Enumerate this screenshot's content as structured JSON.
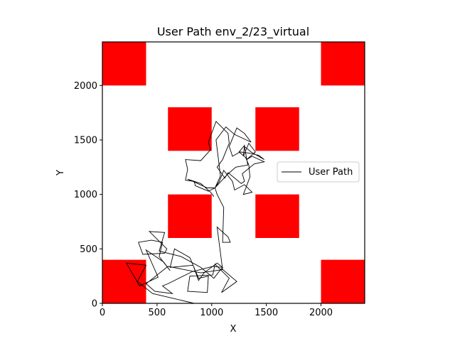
{
  "chart_data": {
    "type": "line",
    "title": "User Path env_2/23_virtual",
    "xlabel": "X",
    "ylabel": "Y",
    "xlim": [
      0,
      2400
    ],
    "ylim": [
      0,
      2400
    ],
    "xticks": [
      0,
      500,
      1000,
      1500,
      2000
    ],
    "yticks": [
      0,
      500,
      1000,
      1500,
      2000
    ],
    "grid": false,
    "legend": {
      "position": "center-right",
      "entries": [
        "User Path"
      ]
    },
    "obstacle_color": "#ff0000",
    "path_color": "#000000",
    "obstacles": [
      {
        "x": 0,
        "y": 2000,
        "w": 400,
        "h": 400
      },
      {
        "x": 2000,
        "y": 2000,
        "w": 400,
        "h": 400
      },
      {
        "x": 600,
        "y": 1400,
        "w": 400,
        "h": 400
      },
      {
        "x": 1400,
        "y": 1400,
        "w": 400,
        "h": 400
      },
      {
        "x": 600,
        "y": 600,
        "w": 400,
        "h": 400
      },
      {
        "x": 1400,
        "y": 600,
        "w": 400,
        "h": 400
      },
      {
        "x": 0,
        "y": 0,
        "w": 400,
        "h": 400
      },
      {
        "x": 2000,
        "y": 0,
        "w": 400,
        "h": 400
      }
    ],
    "series": [
      {
        "name": "User Path",
        "points": [
          [
            840,
            0
          ],
          [
            460,
            90
          ],
          [
            320,
            200
          ],
          [
            400,
            350
          ],
          [
            220,
            370
          ],
          [
            340,
            160
          ],
          [
            510,
            240
          ],
          [
            400,
            490
          ],
          [
            560,
            380
          ],
          [
            620,
            300
          ],
          [
            520,
            430
          ],
          [
            550,
            560
          ],
          [
            450,
            580
          ],
          [
            330,
            560
          ],
          [
            370,
            450
          ],
          [
            570,
            460
          ],
          [
            590,
            500
          ],
          [
            430,
            660
          ],
          [
            570,
            650
          ],
          [
            520,
            480
          ],
          [
            720,
            430
          ],
          [
            900,
            330
          ],
          [
            1020,
            230
          ],
          [
            1090,
            320
          ],
          [
            1230,
            200
          ],
          [
            1090,
            100
          ],
          [
            1160,
            230
          ],
          [
            1030,
            360
          ],
          [
            1010,
            260
          ],
          [
            800,
            250
          ],
          [
            780,
            110
          ],
          [
            960,
            100
          ],
          [
            970,
            250
          ],
          [
            880,
            230
          ],
          [
            800,
            420
          ],
          [
            660,
            500
          ],
          [
            620,
            330
          ],
          [
            830,
            350
          ],
          [
            880,
            210
          ],
          [
            930,
            280
          ],
          [
            1050,
            370
          ],
          [
            1100,
            330
          ],
          [
            1010,
            340
          ],
          [
            820,
            290
          ],
          [
            600,
            180
          ],
          [
            550,
            160
          ],
          [
            640,
            90
          ],
          [
            480,
            110
          ],
          [
            400,
            180
          ],
          [
            600,
            340
          ],
          [
            900,
            280
          ],
          [
            1100,
            310
          ],
          [
            1050,
            700
          ],
          [
            1150,
            610
          ],
          [
            1170,
            560
          ],
          [
            1100,
            560
          ],
          [
            1110,
            880
          ],
          [
            1050,
            1000
          ],
          [
            1030,
            1060
          ],
          [
            970,
            1030
          ],
          [
            850,
            1080
          ],
          [
            840,
            1120
          ],
          [
            760,
            1130
          ],
          [
            780,
            1230
          ],
          [
            760,
            1320
          ],
          [
            900,
            1310
          ],
          [
            990,
            1410
          ],
          [
            970,
            1480
          ],
          [
            1040,
            1670
          ],
          [
            1150,
            1560
          ],
          [
            1160,
            1470
          ],
          [
            1100,
            1320
          ],
          [
            1050,
            1250
          ],
          [
            1120,
            1150
          ],
          [
            1150,
            1200
          ],
          [
            1270,
            1100
          ],
          [
            1300,
            1120
          ],
          [
            1280,
            1190
          ],
          [
            1390,
            1280
          ],
          [
            1480,
            1300
          ],
          [
            1370,
            1350
          ],
          [
            1320,
            1320
          ],
          [
            1400,
            1390
          ],
          [
            1340,
            1470
          ],
          [
            1290,
            1350
          ],
          [
            1300,
            1450
          ],
          [
            1250,
            1390
          ],
          [
            1310,
            1340
          ],
          [
            1340,
            1270
          ],
          [
            1350,
            1160
          ],
          [
            1290,
            1000
          ],
          [
            1370,
            1020
          ],
          [
            1300,
            1090
          ],
          [
            1210,
            1040
          ],
          [
            1190,
            1120
          ],
          [
            1110,
            1220
          ],
          [
            1070,
            1120
          ],
          [
            1030,
            1060
          ],
          [
            1140,
            1180
          ],
          [
            1220,
            1250
          ],
          [
            1330,
            1270
          ],
          [
            1300,
            1440
          ],
          [
            1360,
            1390
          ],
          [
            1480,
            1320
          ],
          [
            1430,
            1360
          ],
          [
            1340,
            1380
          ],
          [
            1260,
            1390
          ],
          [
            1190,
            1350
          ],
          [
            1160,
            1440
          ],
          [
            1230,
            1610
          ],
          [
            1300,
            1560
          ],
          [
            1360,
            1480
          ],
          [
            1210,
            1550
          ],
          [
            1130,
            1620
          ],
          [
            1040,
            1500
          ],
          [
            1080,
            1170
          ],
          [
            1030,
            1060
          ],
          [
            960,
            1060
          ],
          [
            850,
            1110
          ],
          [
            780,
            1140
          ],
          [
            900,
            1100
          ],
          [
            990,
            1020
          ],
          [
            1020,
            980
          ]
        ]
      }
    ]
  }
}
